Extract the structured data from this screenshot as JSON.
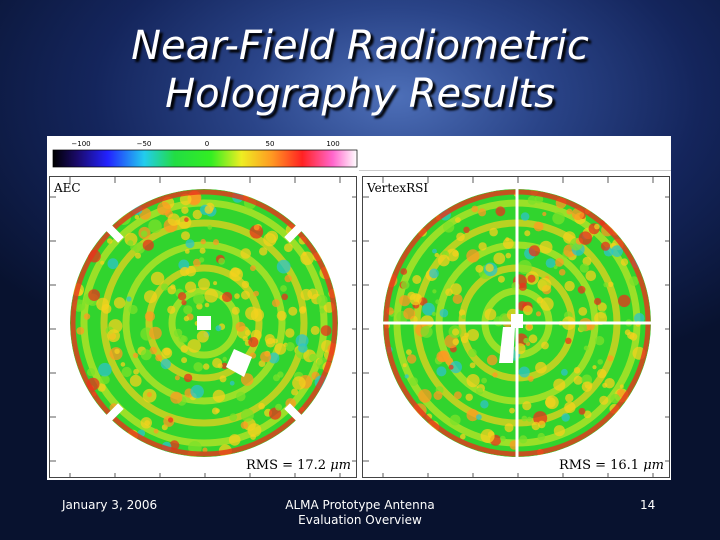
{
  "slide": {
    "title_line1": "Near-Field Radiometric",
    "title_line2": "Holography Results"
  },
  "colorbar": {
    "ticks": [
      "−100",
      "−50",
      "0",
      "50",
      "100"
    ]
  },
  "panels": [
    {
      "label": "AEC",
      "rms_prefix": "RMS = 17.2",
      "rms_unit": "μm"
    },
    {
      "label": "VertexRSI",
      "rms_prefix": "RMS = 16.1",
      "rms_unit": "μm"
    }
  ],
  "footer": {
    "date": "January 3, 2006",
    "center_line1": "ALMA Prototype Antenna",
    "center_line2": "Evaluation Overview",
    "page": "14"
  },
  "colors": {
    "surface_base": "#31d42e",
    "surface_warm": "#f4d21e",
    "surface_hot": "#e8321c",
    "surface_cool": "#2ec4c8"
  }
}
